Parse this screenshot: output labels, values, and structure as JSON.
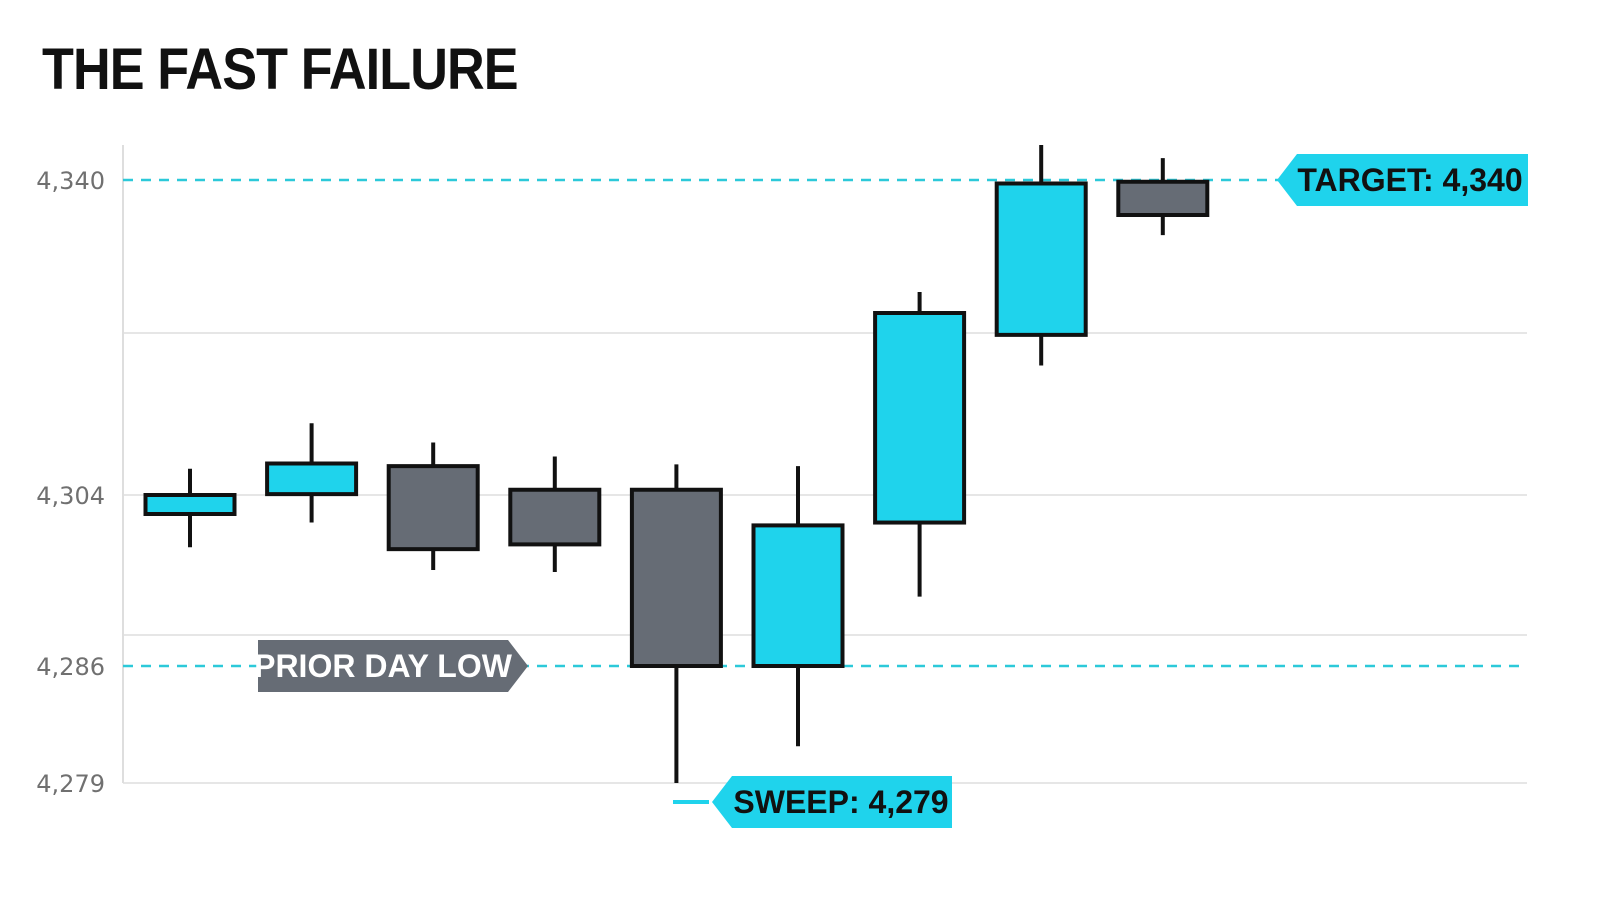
{
  "title": "THE FAST FAILURE",
  "chart_data": {
    "type": "candlestick",
    "title": "THE FAST FAILURE",
    "xlabel": "",
    "ylabel": "",
    "y_ticks": [
      "4,279",
      "4,286",
      "4,304",
      "4,340"
    ],
    "y_tick_values": [
      4279,
      4286,
      4304,
      4340
    ],
    "grid": "horizontal",
    "candles": [
      {
        "open": 4302.0,
        "high": 4307.0,
        "low": 4298.5,
        "close": 4304.0
      },
      {
        "open": 4304.1,
        "high": 4312.2,
        "low": 4301.1,
        "close": 4307.6
      },
      {
        "open": 4307.3,
        "high": 4310.0,
        "low": 4296.1,
        "close": 4298.3
      },
      {
        "open": 4304.6,
        "high": 4308.4,
        "low": 4295.9,
        "close": 4298.8
      },
      {
        "open": 4304.6,
        "high": 4307.5,
        "low": 4279.0,
        "close": 4286.0
      },
      {
        "open": 4286.0,
        "high": 4307.3,
        "low": 4281.2,
        "close": 4300.8
      },
      {
        "open": 4301.1,
        "high": 4327.2,
        "low": 4293.3,
        "close": 4324.8
      },
      {
        "open": 4322.3,
        "high": 4344.0,
        "low": 4318.8,
        "close": 4339.6
      },
      {
        "open": 4339.8,
        "high": 4342.5,
        "low": 4333.7,
        "close": 4336.0
      }
    ],
    "reference_lines": [
      {
        "label": "PRIOR DAY LOW",
        "value": 4286
      },
      {
        "label": "TARGET: 4,340",
        "value": 4340
      }
    ],
    "annotations": [
      {
        "label": "SWEEP: 4,279",
        "value": 4279
      }
    ],
    "colors": {
      "bullish": "#1fd3ec",
      "bearish": "#666c75",
      "outline": "#111111",
      "reference_line": "#2cc9d9",
      "grid": "#dedede",
      "prior_day_tag": "#666c75",
      "prior_day_text": "#ffffff",
      "target_tag": "#1fd3ec",
      "target_text": "#111111"
    }
  }
}
